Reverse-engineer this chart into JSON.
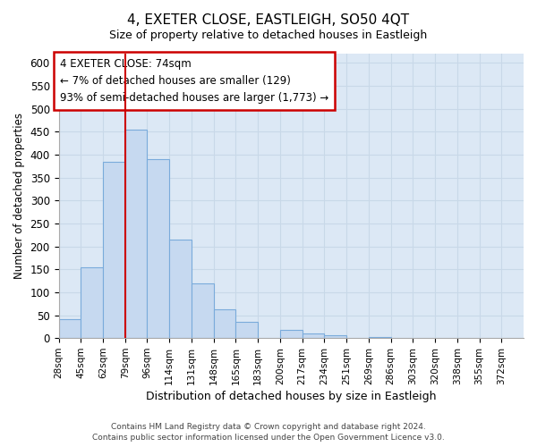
{
  "title": "4, EXETER CLOSE, EASTLEIGH, SO50 4QT",
  "subtitle": "Size of property relative to detached houses in Eastleigh",
  "xlabel": "Distribution of detached houses by size in Eastleigh",
  "ylabel": "Number of detached properties",
  "bin_labels": [
    "28sqm",
    "45sqm",
    "62sqm",
    "79sqm",
    "96sqm",
    "114sqm",
    "131sqm",
    "148sqm",
    "165sqm",
    "183sqm",
    "200sqm",
    "217sqm",
    "234sqm",
    "251sqm",
    "269sqm",
    "286sqm",
    "303sqm",
    "320sqm",
    "338sqm",
    "355sqm",
    "372sqm"
  ],
  "bar_heights": [
    42,
    155,
    385,
    455,
    390,
    215,
    120,
    62,
    35,
    0,
    18,
    10,
    7,
    0,
    3,
    0,
    0,
    0,
    0,
    0
  ],
  "bar_color": "#c6d9f0",
  "bar_edge_color": "#7aabdb",
  "vline_x": 3,
  "vline_color": "#cc0000",
  "annotation_text": "4 EXETER CLOSE: 74sqm\n← 7% of detached houses are smaller (129)\n93% of semi-detached houses are larger (1,773) →",
  "annotation_box_edge_color": "#cc0000",
  "annotation_box_face_color": "#ffffff",
  "footer_line1": "Contains HM Land Registry data © Crown copyright and database right 2024.",
  "footer_line2": "Contains public sector information licensed under the Open Government Licence v3.0.",
  "ylim": [
    0,
    620
  ],
  "yticks": [
    0,
    50,
    100,
    150,
    200,
    250,
    300,
    350,
    400,
    450,
    500,
    550,
    600
  ],
  "grid_color": "#c8d8e8",
  "plot_bg_color": "#dce8f5",
  "fig_bg_color": "#ffffff",
  "title_fontsize": 11,
  "subtitle_fontsize": 9
}
